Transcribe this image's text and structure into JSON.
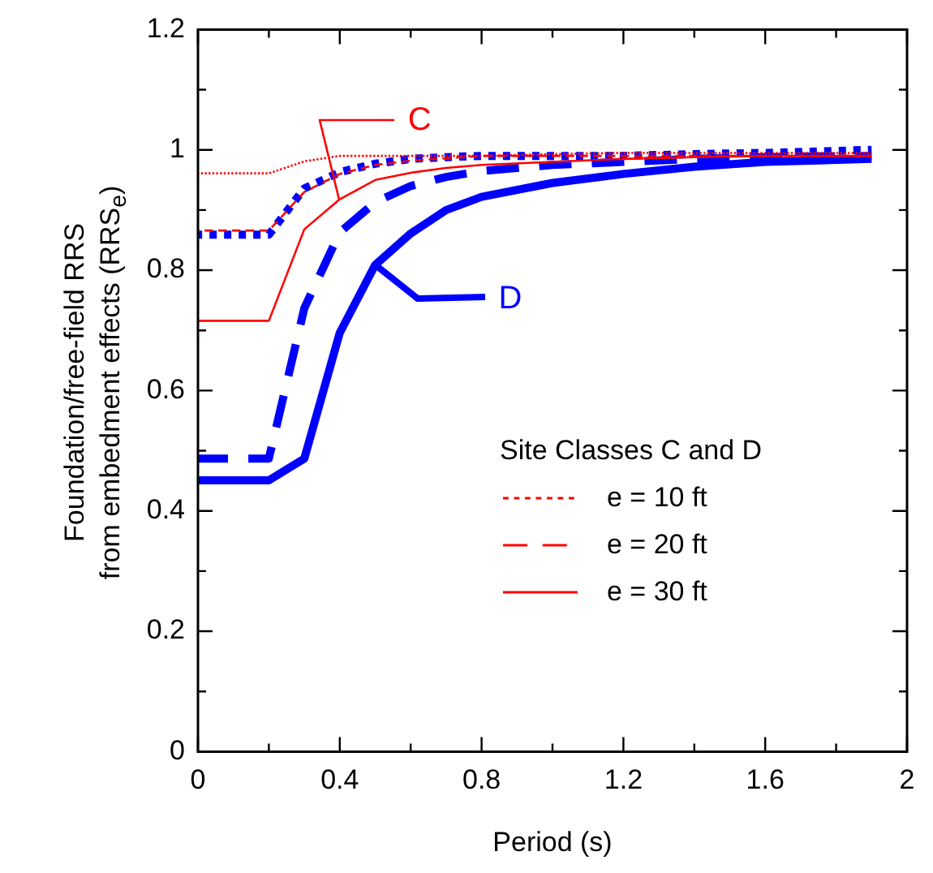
{
  "chart_data": {
    "type": "line",
    "xlabel": "Period (s)",
    "ylabel": "Foundation/free-field RRS\nfrom embedment effects (RRS$_{e}$)",
    "legend_title": "Site Classes C and D",
    "legend": "bottom right",
    "x": [
      0,
      0.2,
      0.3,
      0.4,
      0.5,
      0.6,
      0.7,
      0.8,
      1.0,
      1.2,
      1.4,
      1.6,
      1.9
    ],
    "series": [
      {
        "name": "e = 10 ft",
        "color": "#ff0000",
        "line_style": "dotted",
        "values": [
          0.961,
          0.961,
          0.981,
          0.99,
          0.99,
          0.99,
          0.99,
          0.99,
          0.993,
          0.995,
          0.995,
          0.995,
          0.995
        ]
      },
      {
        "name": "e = 20 ft",
        "color": "#ff0000",
        "line_style": "dashed",
        "values": [
          0.866,
          0.866,
          0.93,
          0.96,
          0.975,
          0.982,
          0.986,
          0.99,
          0.99,
          0.99,
          0.99,
          0.99,
          0.99
        ]
      },
      {
        "name": "e = 30 ft",
        "color": "#ff0000",
        "line_style": "solid",
        "values": [
          0.716,
          0.716,
          0.868,
          0.918,
          0.95,
          0.962,
          0.97,
          0.975,
          0.98,
          0.985,
          0.988,
          0.99,
          0.99
        ]
      },
      {
        "color": "#0000ff",
        "line_style": "dotted",
        "values": [
          0.859,
          0.859,
          0.936,
          0.963,
          0.977,
          0.985,
          0.988,
          0.99,
          0.99,
          0.99,
          0.993,
          0.995,
          1.0
        ]
      },
      {
        "color": "#0000ff",
        "line_style": "dashed",
        "values": [
          0.487,
          0.487,
          0.737,
          0.863,
          0.913,
          0.94,
          0.955,
          0.965,
          0.975,
          0.98,
          0.985,
          0.988,
          0.99
        ]
      },
      {
        "color": "#0000ff",
        "line_style": "solid",
        "values": [
          0.451,
          0.451,
          0.487,
          0.696,
          0.809,
          0.861,
          0.9,
          0.922,
          0.945,
          0.96,
          0.972,
          0.98,
          0.985
        ]
      }
    ],
    "annotations": [
      {
        "text": "C",
        "x": 0.4,
        "y": 0.918
      },
      {
        "text": "D",
        "x": 0.5,
        "y": 0.809
      }
    ],
    "xlim": [
      0,
      2
    ],
    "xticks": [
      0,
      {
        "value": 0.2,
        "label": null
      },
      0.4,
      {
        "value": 0.6,
        "label": null
      },
      0.8,
      {
        "value": 1.0,
        "label": null
      },
      1.2,
      {
        "value": 1.4,
        "label": null
      },
      1.6,
      {
        "value": 1.8,
        "label": null
      },
      2
    ],
    "ylim": [
      0,
      1.2
    ],
    "yticks": [
      0,
      {
        "value": 0.1,
        "label": null
      },
      0.2,
      {
        "value": 0.3,
        "label": null
      },
      0.4,
      {
        "value": 0.5,
        "label": null
      },
      0.6,
      {
        "value": 0.7,
        "label": null
      },
      0.8,
      {
        "value": 0.9,
        "label": null
      },
      1,
      {
        "value": 1.1,
        "label": null
      },
      1.2
    ],
    "grid": false,
    "marker": "none"
  }
}
